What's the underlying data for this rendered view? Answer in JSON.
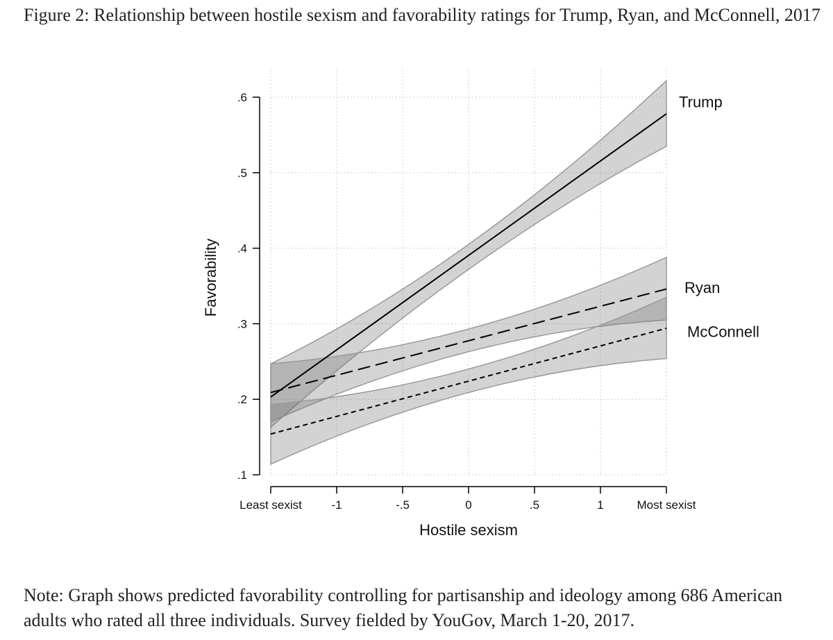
{
  "figure": {
    "title": "Figure 2: Relationship between hostile sexism and favorability ratings for Trump, Ryan, and McConnell, 2017",
    "note": "Note: Graph shows predicted favorability controlling for partisanship and ideology among 686 American adults who rated all three individuals. Survey fielded by YouGov, March 1-20, 2017."
  },
  "chart_data": {
    "type": "line",
    "title": "",
    "xlabel": "Hostile sexism",
    "ylabel": "Favorability",
    "xlim": [
      -1.5,
      1.5
    ],
    "ylim": [
      0.1,
      0.6
    ],
    "x_ticks": [
      {
        "value": -1.5,
        "label": "Least sexist"
      },
      {
        "value": -1,
        "label": "-1"
      },
      {
        "value": -0.5,
        "label": "-.5"
      },
      {
        "value": 0,
        "label": "0"
      },
      {
        "value": 0.5,
        "label": ".5"
      },
      {
        "value": 1,
        "label": "1"
      },
      {
        "value": 1.5,
        "label": "Most sexist"
      }
    ],
    "y_ticks": [
      {
        "value": 0.1,
        "label": ".1"
      },
      {
        "value": 0.2,
        "label": ".2"
      },
      {
        "value": 0.3,
        "label": ".3"
      },
      {
        "value": 0.4,
        "label": ".4"
      },
      {
        "value": 0.5,
        "label": ".5"
      },
      {
        "value": 0.6,
        "label": ".6"
      }
    ],
    "grid": true,
    "legend": "direct labels at right end of lines",
    "series": [
      {
        "name": "Trump",
        "dash": "solid",
        "x": [
          -1.5,
          1.5
        ],
        "y": [
          0.203,
          0.578
        ],
        "ci_lower": [
          0.163,
          0.535
        ],
        "ci_upper": [
          0.247,
          0.622
        ],
        "mid_ci": {
          "x": 0,
          "lower": 0.372,
          "upper": 0.405
        }
      },
      {
        "name": "Ryan",
        "dash": "long-dash",
        "x": [
          -1.5,
          1.5
        ],
        "y": [
          0.209,
          0.346
        ],
        "ci_lower": [
          0.17,
          0.305
        ],
        "ci_upper": [
          0.247,
          0.388
        ],
        "mid_ci": {
          "x": 0,
          "lower": 0.263,
          "upper": 0.293
        }
      },
      {
        "name": "McConnell",
        "dash": "short-dash",
        "x": [
          -1.5,
          1.5
        ],
        "y": [
          0.154,
          0.294
        ],
        "ci_lower": [
          0.114,
          0.254
        ],
        "ci_upper": [
          0.193,
          0.335
        ],
        "mid_ci": {
          "x": 0,
          "lower": 0.209,
          "upper": 0.24
        }
      }
    ]
  }
}
